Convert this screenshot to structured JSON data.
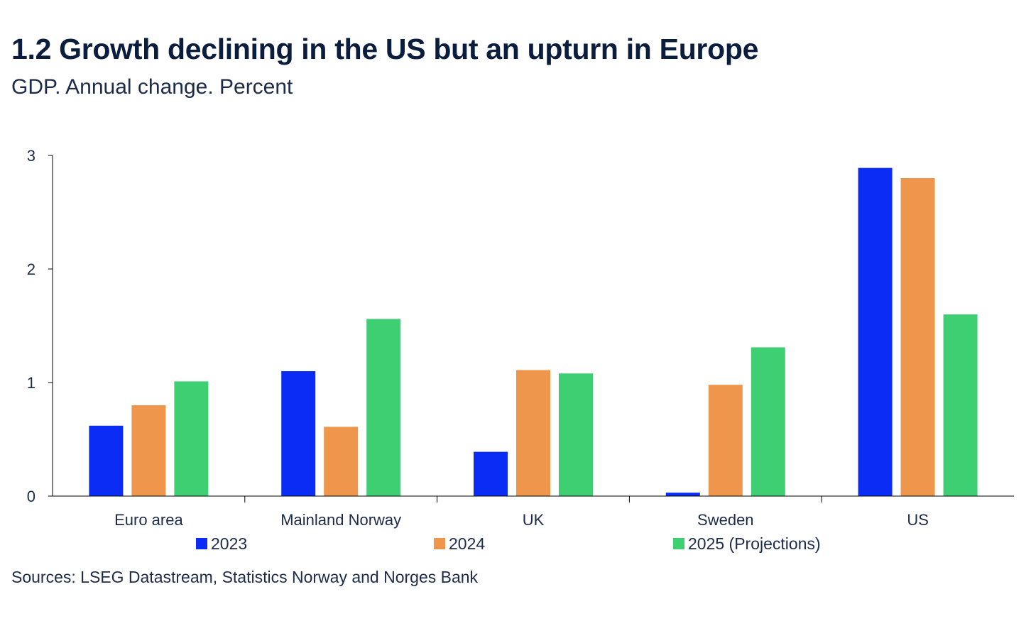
{
  "header": {
    "title": "1.2 Growth declining in the US but an upturn in Europe",
    "subtitle": "GDP. Annual change. Percent"
  },
  "footer": {
    "source": "Sources: LSEG Datastream, Statistics Norway and Norges Bank"
  },
  "chart_data": {
    "type": "bar",
    "title": "1.2 Growth declining in the US but an upturn in Europe",
    "subtitle": "GDP. Annual change. Percent",
    "xlabel": "",
    "ylabel": "",
    "ylim": [
      0,
      3
    ],
    "yticks": [
      0,
      1,
      2,
      3
    ],
    "grid": false,
    "legend_position": "bottom",
    "categories": [
      "Euro area",
      "Mainland Norway",
      "UK",
      "Sweden",
      "US"
    ],
    "series": [
      {
        "name": "2023",
        "color": "#0a2cf5",
        "values": [
          0.62,
          1.1,
          0.39,
          0.03,
          2.89
        ]
      },
      {
        "name": "2024",
        "color": "#ee964b",
        "values": [
          0.8,
          0.61,
          1.11,
          0.98,
          2.8
        ]
      },
      {
        "name": "2025 (Projections)",
        "color": "#3ecf72",
        "values": [
          1.01,
          1.56,
          1.08,
          1.31,
          1.6
        ]
      }
    ],
    "source": "Sources: LSEG Datastream, Statistics Norway and Norges Bank"
  }
}
